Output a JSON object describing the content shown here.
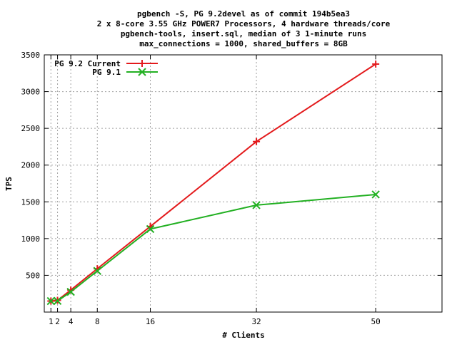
{
  "chart_data": {
    "type": "line",
    "title_lines": [
      "pgbench -S, PG 9.2devel as of commit 194b5ea3",
      "2 x 8-core 3.55 GHz POWER7 Processors, 4 hardware threads/core",
      "pgbench-tools, insert.sql, median of 3 1-minute runs",
      "max_connections = 1000, shared_buffers = 8GB"
    ],
    "xlabel": "# Clients",
    "ylabel": "TPS",
    "xlim": [
      0,
      60
    ],
    "ylim": [
      0,
      3500
    ],
    "x_ticks": [
      1,
      2,
      4,
      8,
      16,
      32,
      50
    ],
    "y_ticks": [
      500,
      1000,
      1500,
      2000,
      2500,
      3000,
      3500
    ],
    "grid": true,
    "legend_position": "top-left",
    "series": [
      {
        "name": "PG 9.2 Current",
        "color": "#e31a1c",
        "marker": "plus",
        "x": [
          1,
          2,
          4,
          8,
          16,
          32,
          50
        ],
        "y": [
          150,
          160,
          300,
          590,
          1165,
          2320,
          3375
        ]
      },
      {
        "name": "PG 9.1",
        "color": "#22b022",
        "marker": "cross",
        "x": [
          1,
          2,
          4,
          8,
          16,
          32,
          50
        ],
        "y": [
          150,
          152,
          275,
          560,
          1130,
          1455,
          1600
        ]
      }
    ]
  }
}
